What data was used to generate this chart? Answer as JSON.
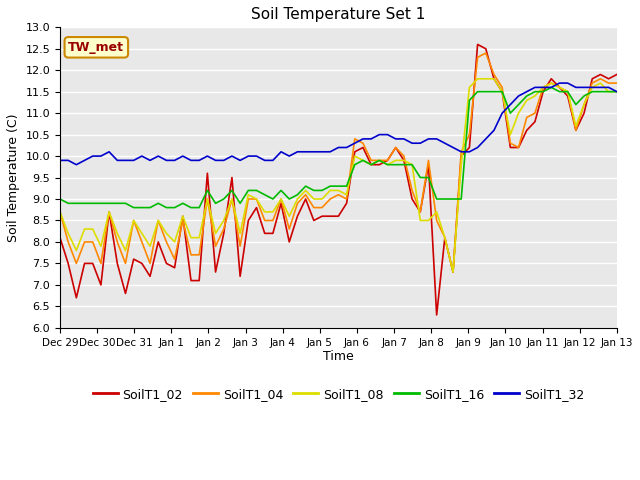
{
  "title": "Soil Temperature Set 1",
  "xlabel": "Time",
  "ylabel": "Soil Temperature (C)",
  "ylim": [
    6.0,
    13.0
  ],
  "yticks": [
    6.0,
    6.5,
    7.0,
    7.5,
    8.0,
    8.5,
    9.0,
    9.5,
    10.0,
    10.5,
    11.0,
    11.5,
    12.0,
    12.5,
    13.0
  ],
  "bg_color": "#e8e8e8",
  "fig_color": "#ffffff",
  "annotation_text": "TW_met",
  "annotation_bg": "#ffffcc",
  "annotation_border": "#cc8800",
  "series": {
    "SoilT1_02": {
      "color": "#cc0000",
      "lw": 1.2,
      "values": [
        8.1,
        7.5,
        6.7,
        7.5,
        7.5,
        7.0,
        8.7,
        7.5,
        6.8,
        7.6,
        7.5,
        7.2,
        8.0,
        7.5,
        7.4,
        8.6,
        7.1,
        7.1,
        9.6,
        7.3,
        8.2,
        9.5,
        7.2,
        8.5,
        8.8,
        8.2,
        8.2,
        8.9,
        8.0,
        8.6,
        9.0,
        8.5,
        8.6,
        8.6,
        8.6,
        8.9,
        10.1,
        10.2,
        9.8,
        9.8,
        9.9,
        10.2,
        9.9,
        9.0,
        8.7,
        9.8,
        6.3,
        8.1,
        7.3,
        10.0,
        10.2,
        12.6,
        12.5,
        11.8,
        11.5,
        10.2,
        10.2,
        10.6,
        10.8,
        11.5,
        11.8,
        11.6,
        11.4,
        10.6,
        11.0,
        11.8,
        11.9,
        11.8,
        11.9
      ]
    },
    "SoilT1_04": {
      "color": "#ff8800",
      "lw": 1.2,
      "values": [
        8.7,
        8.0,
        7.5,
        8.0,
        8.0,
        7.5,
        8.7,
        8.0,
        7.5,
        8.5,
        8.0,
        7.5,
        8.5,
        8.0,
        7.6,
        8.5,
        7.7,
        7.7,
        9.0,
        7.9,
        8.3,
        9.0,
        7.9,
        9.0,
        9.0,
        8.5,
        8.5,
        9.0,
        8.3,
        8.9,
        9.1,
        8.8,
        8.8,
        9.0,
        9.1,
        9.0,
        10.4,
        10.3,
        9.9,
        9.9,
        9.9,
        10.2,
        10.0,
        9.2,
        8.7,
        9.9,
        8.5,
        8.1,
        7.3,
        10.1,
        10.5,
        12.3,
        12.4,
        11.9,
        11.6,
        10.3,
        10.2,
        10.9,
        11.0,
        11.6,
        11.7,
        11.6,
        11.5,
        10.6,
        11.2,
        11.7,
        11.8,
        11.7,
        11.7
      ]
    },
    "SoilT1_08": {
      "color": "#dddd00",
      "lw": 1.2,
      "values": [
        8.7,
        8.2,
        7.8,
        8.3,
        8.3,
        7.9,
        8.7,
        8.2,
        7.8,
        8.5,
        8.2,
        7.9,
        8.5,
        8.2,
        8.0,
        8.6,
        8.1,
        8.1,
        9.0,
        8.2,
        8.5,
        9.0,
        8.2,
        9.1,
        9.0,
        8.7,
        8.7,
        9.0,
        8.6,
        9.0,
        9.2,
        9.0,
        9.0,
        9.2,
        9.2,
        9.1,
        10.0,
        9.9,
        9.8,
        9.9,
        9.8,
        9.9,
        9.9,
        9.8,
        8.5,
        8.5,
        8.7,
        8.1,
        7.3,
        9.8,
        11.6,
        11.8,
        11.8,
        11.8,
        11.5,
        10.5,
        11.0,
        11.3,
        11.4,
        11.6,
        11.7,
        11.6,
        11.5,
        10.7,
        11.2,
        11.6,
        11.7,
        11.5,
        11.5
      ]
    },
    "SoilT1_16": {
      "color": "#00bb00",
      "lw": 1.2,
      "values": [
        9.0,
        8.9,
        8.9,
        8.9,
        8.9,
        8.9,
        8.9,
        8.9,
        8.9,
        8.8,
        8.8,
        8.8,
        8.9,
        8.8,
        8.8,
        8.9,
        8.8,
        8.8,
        9.2,
        8.9,
        9.0,
        9.2,
        8.9,
        9.2,
        9.2,
        9.1,
        9.0,
        9.2,
        9.0,
        9.1,
        9.3,
        9.2,
        9.2,
        9.3,
        9.3,
        9.3,
        9.8,
        9.9,
        9.8,
        9.9,
        9.8,
        9.8,
        9.8,
        9.8,
        9.5,
        9.5,
        9.0,
        9.0,
        9.0,
        9.0,
        11.3,
        11.5,
        11.5,
        11.5,
        11.5,
        11.0,
        11.2,
        11.4,
        11.5,
        11.5,
        11.6,
        11.5,
        11.5,
        11.2,
        11.4,
        11.5,
        11.5,
        11.5,
        11.5
      ]
    },
    "SoilT1_32": {
      "color": "#0000cc",
      "lw": 1.2,
      "values": [
        9.9,
        9.9,
        9.8,
        9.9,
        10.0,
        10.0,
        10.1,
        9.9,
        9.9,
        9.9,
        10.0,
        9.9,
        10.0,
        9.9,
        9.9,
        10.0,
        9.9,
        9.9,
        10.0,
        9.9,
        9.9,
        10.0,
        9.9,
        10.0,
        10.0,
        9.9,
        9.9,
        10.1,
        10.0,
        10.1,
        10.1,
        10.1,
        10.1,
        10.1,
        10.2,
        10.2,
        10.3,
        10.4,
        10.4,
        10.5,
        10.5,
        10.4,
        10.4,
        10.3,
        10.3,
        10.4,
        10.4,
        10.3,
        10.2,
        10.1,
        10.1,
        10.2,
        10.4,
        10.6,
        11.0,
        11.2,
        11.4,
        11.5,
        11.6,
        11.6,
        11.6,
        11.7,
        11.7,
        11.6,
        11.6,
        11.6,
        11.6,
        11.6,
        11.5
      ]
    }
  },
  "xtick_labels": [
    "Dec 29",
    "Dec 30",
    "Dec 31",
    "Jan 1",
    "Jan 2",
    "Jan 3",
    "Jan 4",
    "Jan 5",
    "Jan 6",
    "Jan 7",
    "Jan 8",
    "Jan 9",
    "Jan 10",
    "Jan 11",
    "Jan 12",
    "Jan 13"
  ],
  "n_points": 69
}
